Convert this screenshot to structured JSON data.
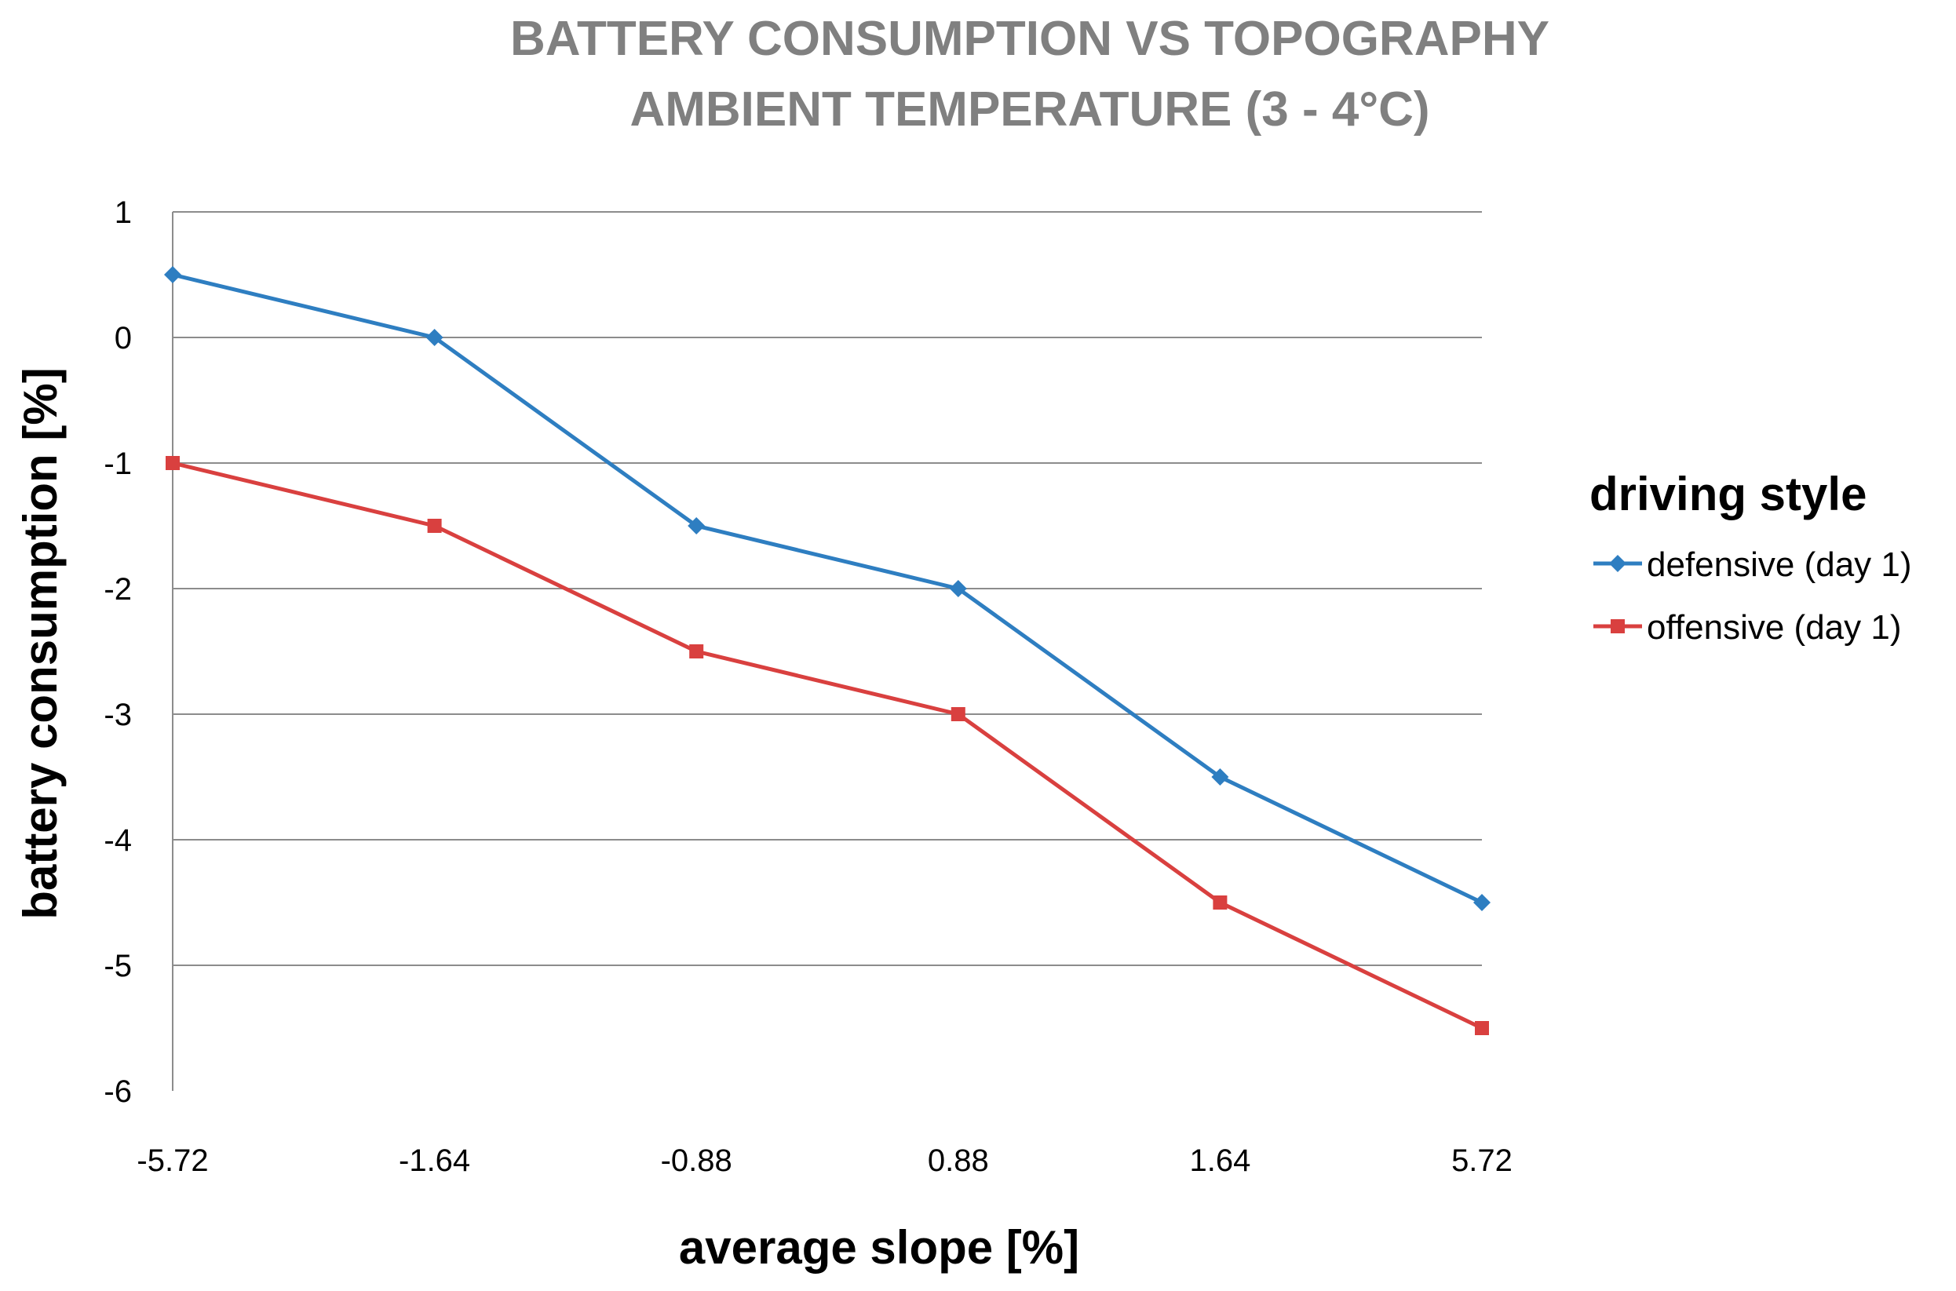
{
  "chart_data": {
    "type": "line",
    "title": "BATTERY CONSUMPTION VS TOPOGRAPHY",
    "subtitle": "AMBIENT TEMPERATURE (3 - 4°C)",
    "xlabel": "average slope [%]",
    "ylabel": "battery consumption [%]",
    "categories": [
      "-5.72",
      "-1.64",
      "-0.88",
      "0.88",
      "1.64",
      "5.72"
    ],
    "ylim": [
      -6,
      1
    ],
    "yticks": [
      1,
      0,
      -1,
      -2,
      -3,
      -4,
      -5,
      -6
    ],
    "grid": true,
    "legend": {
      "title": "driving style",
      "position": "right"
    },
    "series": [
      {
        "name": "defensive (day 1)",
        "color": "#2E7EC1",
        "marker": "diamond",
        "values": [
          0.5,
          0.0,
          -1.5,
          -2.0,
          -3.5,
          -4.5
        ]
      },
      {
        "name": "offensive (day 1)",
        "color": "#D9403F",
        "marker": "square",
        "values": [
          -1.0,
          -1.5,
          -2.5,
          -3.0,
          -4.5,
          -5.5
        ]
      }
    ]
  }
}
